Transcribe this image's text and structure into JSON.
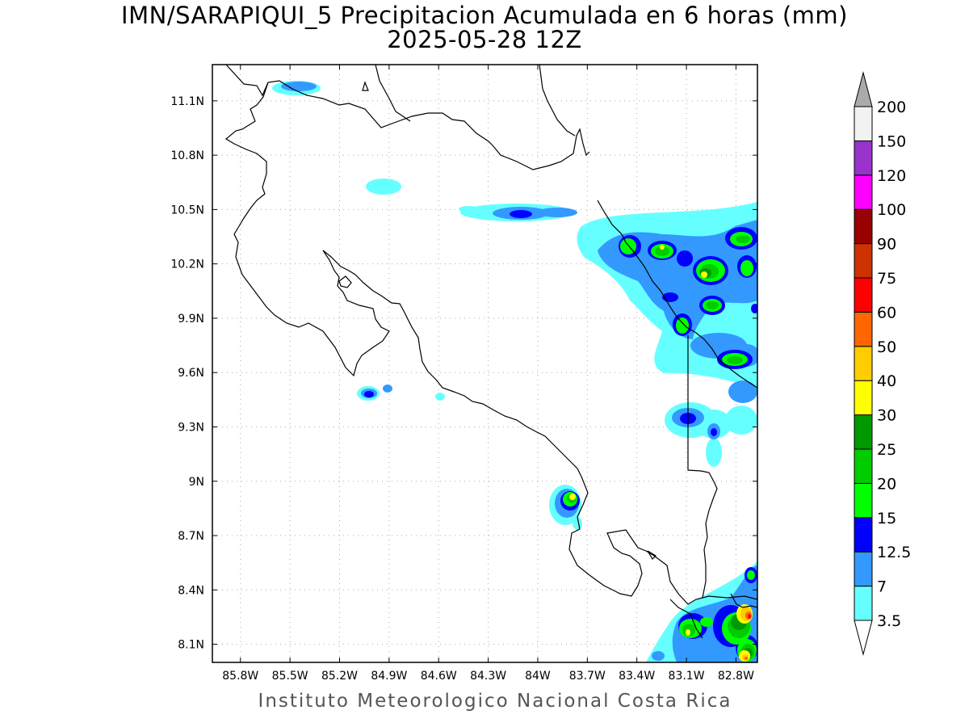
{
  "title": {
    "line1": "IMN/SARAPIQUI_5 Precipitacion Acumulada en 6 horas (mm)",
    "line2": "2025-05-28 12Z"
  },
  "credit": "Instituto Meteorologico Nacional Costa Rica",
  "map": {
    "lon_range": [
      -85.97,
      -82.67
    ],
    "lat_range": [
      8.0,
      11.3
    ],
    "lon_ticks": [
      "85.8W",
      "85.5W",
      "85.2W",
      "84.9W",
      "84.6W",
      "84.3W",
      "84W",
      "83.7W",
      "83.4W",
      "83.1W",
      "82.8W"
    ],
    "lat_ticks": [
      "11.1N",
      "10.8N",
      "10.5N",
      "10.2N",
      "9.9N",
      "9.6N",
      "9.3N",
      "9N",
      "8.7N",
      "8.4N",
      "8.1N"
    ],
    "grid": true
  },
  "colorbar": {
    "labels": [
      "3.5",
      "7",
      "12.5",
      "15",
      "20",
      "25",
      "30",
      "40",
      "50",
      "60",
      "75",
      "90",
      "100",
      "120",
      "150",
      "200"
    ],
    "colors": [
      "#66ffff",
      "#3399ff",
      "#0000ff",
      "#00ff00",
      "#00cc00",
      "#009900",
      "#ffff00",
      "#ffcc00",
      "#ff6600",
      "#ff0000",
      "#cc3300",
      "#990000",
      "#ff00ff",
      "#9933cc",
      "#f2f2f2",
      "#aaaaaa"
    ]
  },
  "colors": {
    "c35": "#66ffff",
    "c7": "#3399ff",
    "c125": "#0000ff",
    "c15": "#00ff00",
    "c20": "#00cc00",
    "c25": "#009900",
    "c30": "#ffff00",
    "c40": "#ffcc00",
    "c50": "#ff6600",
    "c60": "#ff0000"
  }
}
